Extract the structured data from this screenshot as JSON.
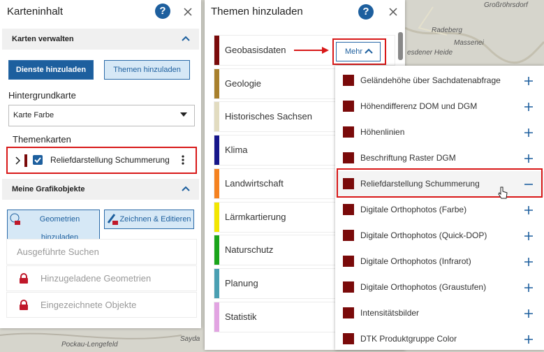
{
  "map": {
    "labels": [
      "Großröhrsdorf",
      "Radeberg",
      "Massenei",
      "esdener Heide",
      "Sayda",
      "Pockau-Lengefeld"
    ]
  },
  "left_panel": {
    "title": "Karteninhalt",
    "help": "?",
    "manage": {
      "title": "Karten verwalten",
      "buttons": [
        "Dienste hinzuladen",
        "Themen hinzuladen"
      ],
      "background_label": "Hintergrundkarte",
      "background_value": "Karte Farbe",
      "topics_label": "Themenkarten",
      "layer": "Reliefdarstellung Schummerung"
    },
    "graphics": {
      "title": "Meine Grafikobjekte",
      "buttons": [
        "Geometrien hinzuladen",
        "Zeichnen & Editieren"
      ],
      "items": [
        "Ausgeführte Suchen",
        "Hinzugeladene Geometrien",
        "Eingezeichnete Objekte"
      ]
    }
  },
  "themes_panel": {
    "title": "Themen hinzuladen",
    "help": "?",
    "more": "Mehr",
    "categories": [
      {
        "name": "Geobasisdaten",
        "color": "#7a0a0a"
      },
      {
        "name": "Geologie",
        "color": "#a8802c"
      },
      {
        "name": "Historisches Sachsen",
        "color": "#e2dcc0"
      },
      {
        "name": "Klima",
        "color": "#16168a"
      },
      {
        "name": "Landwirtschaft",
        "color": "#f5821f"
      },
      {
        "name": "Lärmkartierung",
        "color": "#f2e600"
      },
      {
        "name": "Naturschutz",
        "color": "#1aa51a"
      },
      {
        "name": "Planung",
        "color": "#4a9fb2"
      },
      {
        "name": "Statistik",
        "color": "#e2a4e2"
      }
    ]
  },
  "dropdown": {
    "items": [
      "Geländehöhe über Sachdatenabfrage",
      "Höhendifferenz DOM und DGM",
      "Höhenlinien",
      "Beschriftung Raster DGM",
      "Reliefdarstellung Schummerung",
      "Digitale Orthophotos (Farbe)",
      "Digitale Orthophotos (Quick-DOP)",
      "Digitale Orthophotos (Infrarot)",
      "Digitale Orthophotos (Graustufen)",
      "Intensitätsbilder",
      "DTK Produktgruppe Color"
    ]
  }
}
